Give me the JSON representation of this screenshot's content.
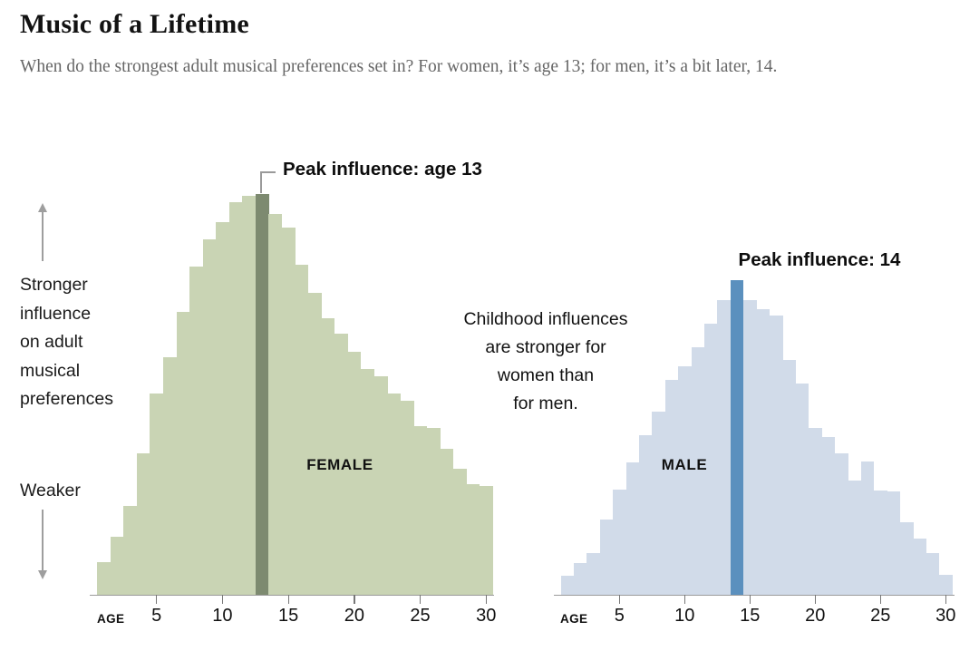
{
  "header": {
    "title": "Music of a Lifetime",
    "subtitle": "When do the strongest adult musical preferences set in? For women, it’s age 13; for men, it’s a bit later, 14."
  },
  "left_annotation": {
    "stronger_lines": [
      "Stronger",
      "influence",
      "on adult",
      "musical",
      "preferences"
    ],
    "weaker_label": "Weaker",
    "up_arrow_icon": "arrow-up",
    "down_arrow_icon": "arrow-down"
  },
  "center_note": {
    "lines": [
      "Childhood influences",
      "are stronger for",
      "women than",
      "for men."
    ]
  },
  "axis": {
    "age_label": "AGE"
  },
  "colors": {
    "female_bar": "#c9d4b4",
    "female_peak_bar": "#7d8a70",
    "male_bar": "#d1dbe9",
    "male_peak_bar": "#5b90be",
    "axis_line": "#9b9b9b",
    "arrow": "#9e9e9e",
    "subtitle_text": "#666666",
    "text": "#111111"
  },
  "chart_data": [
    {
      "type": "bar",
      "series": "FEMALE",
      "peak_label": "Peak influence: age 13",
      "peak_age": 13,
      "ages": [
        1,
        2,
        3,
        4,
        5,
        6,
        7,
        8,
        9,
        10,
        11,
        12,
        13,
        14,
        15,
        16,
        17,
        18,
        19,
        20,
        21,
        22,
        23,
        24,
        25,
        26,
        27,
        28,
        29,
        30
      ],
      "values": [
        8.1,
        14.5,
        22.2,
        35.3,
        50.2,
        59.3,
        70.6,
        81.9,
        88.7,
        93.0,
        98.0,
        99.5,
        100,
        95.0,
        91.6,
        82.4,
        75.3,
        69.0,
        65.2,
        60.6,
        56.3,
        54.5,
        50.2,
        48.4,
        42.1,
        41.6,
        36.4,
        31.4,
        27.6,
        27.1
      ],
      "xlabel": "AGE",
      "x_ticks": [
        5,
        10,
        15,
        20,
        25,
        30
      ],
      "ylim": [
        0,
        100
      ],
      "grid": false,
      "legend_position": "inside"
    },
    {
      "type": "bar",
      "series": "MALE",
      "peak_label": "Peak influence: 14",
      "peak_age": 14,
      "ages": [
        1,
        2,
        3,
        4,
        5,
        6,
        7,
        8,
        9,
        10,
        11,
        12,
        13,
        14,
        15,
        16,
        17,
        18,
        19,
        20,
        21,
        22,
        23,
        24,
        25,
        26,
        27,
        28,
        29,
        30
      ],
      "values": [
        4.8,
        7.9,
        10.4,
        18.8,
        26.2,
        33.0,
        39.8,
        45.7,
        53.6,
        57.0,
        61.8,
        67.6,
        73.5,
        78.5,
        73.5,
        71.3,
        69.7,
        58.6,
        52.7,
        41.6,
        39.4,
        35.3,
        28.5,
        33.3,
        26.0,
        25.8,
        18.1,
        14.0,
        10.4,
        5.0
      ],
      "xlabel": "AGE",
      "x_ticks": [
        5,
        10,
        15,
        20,
        25,
        30
      ],
      "ylim": [
        0,
        100
      ],
      "grid": false,
      "legend_position": "inside"
    }
  ]
}
